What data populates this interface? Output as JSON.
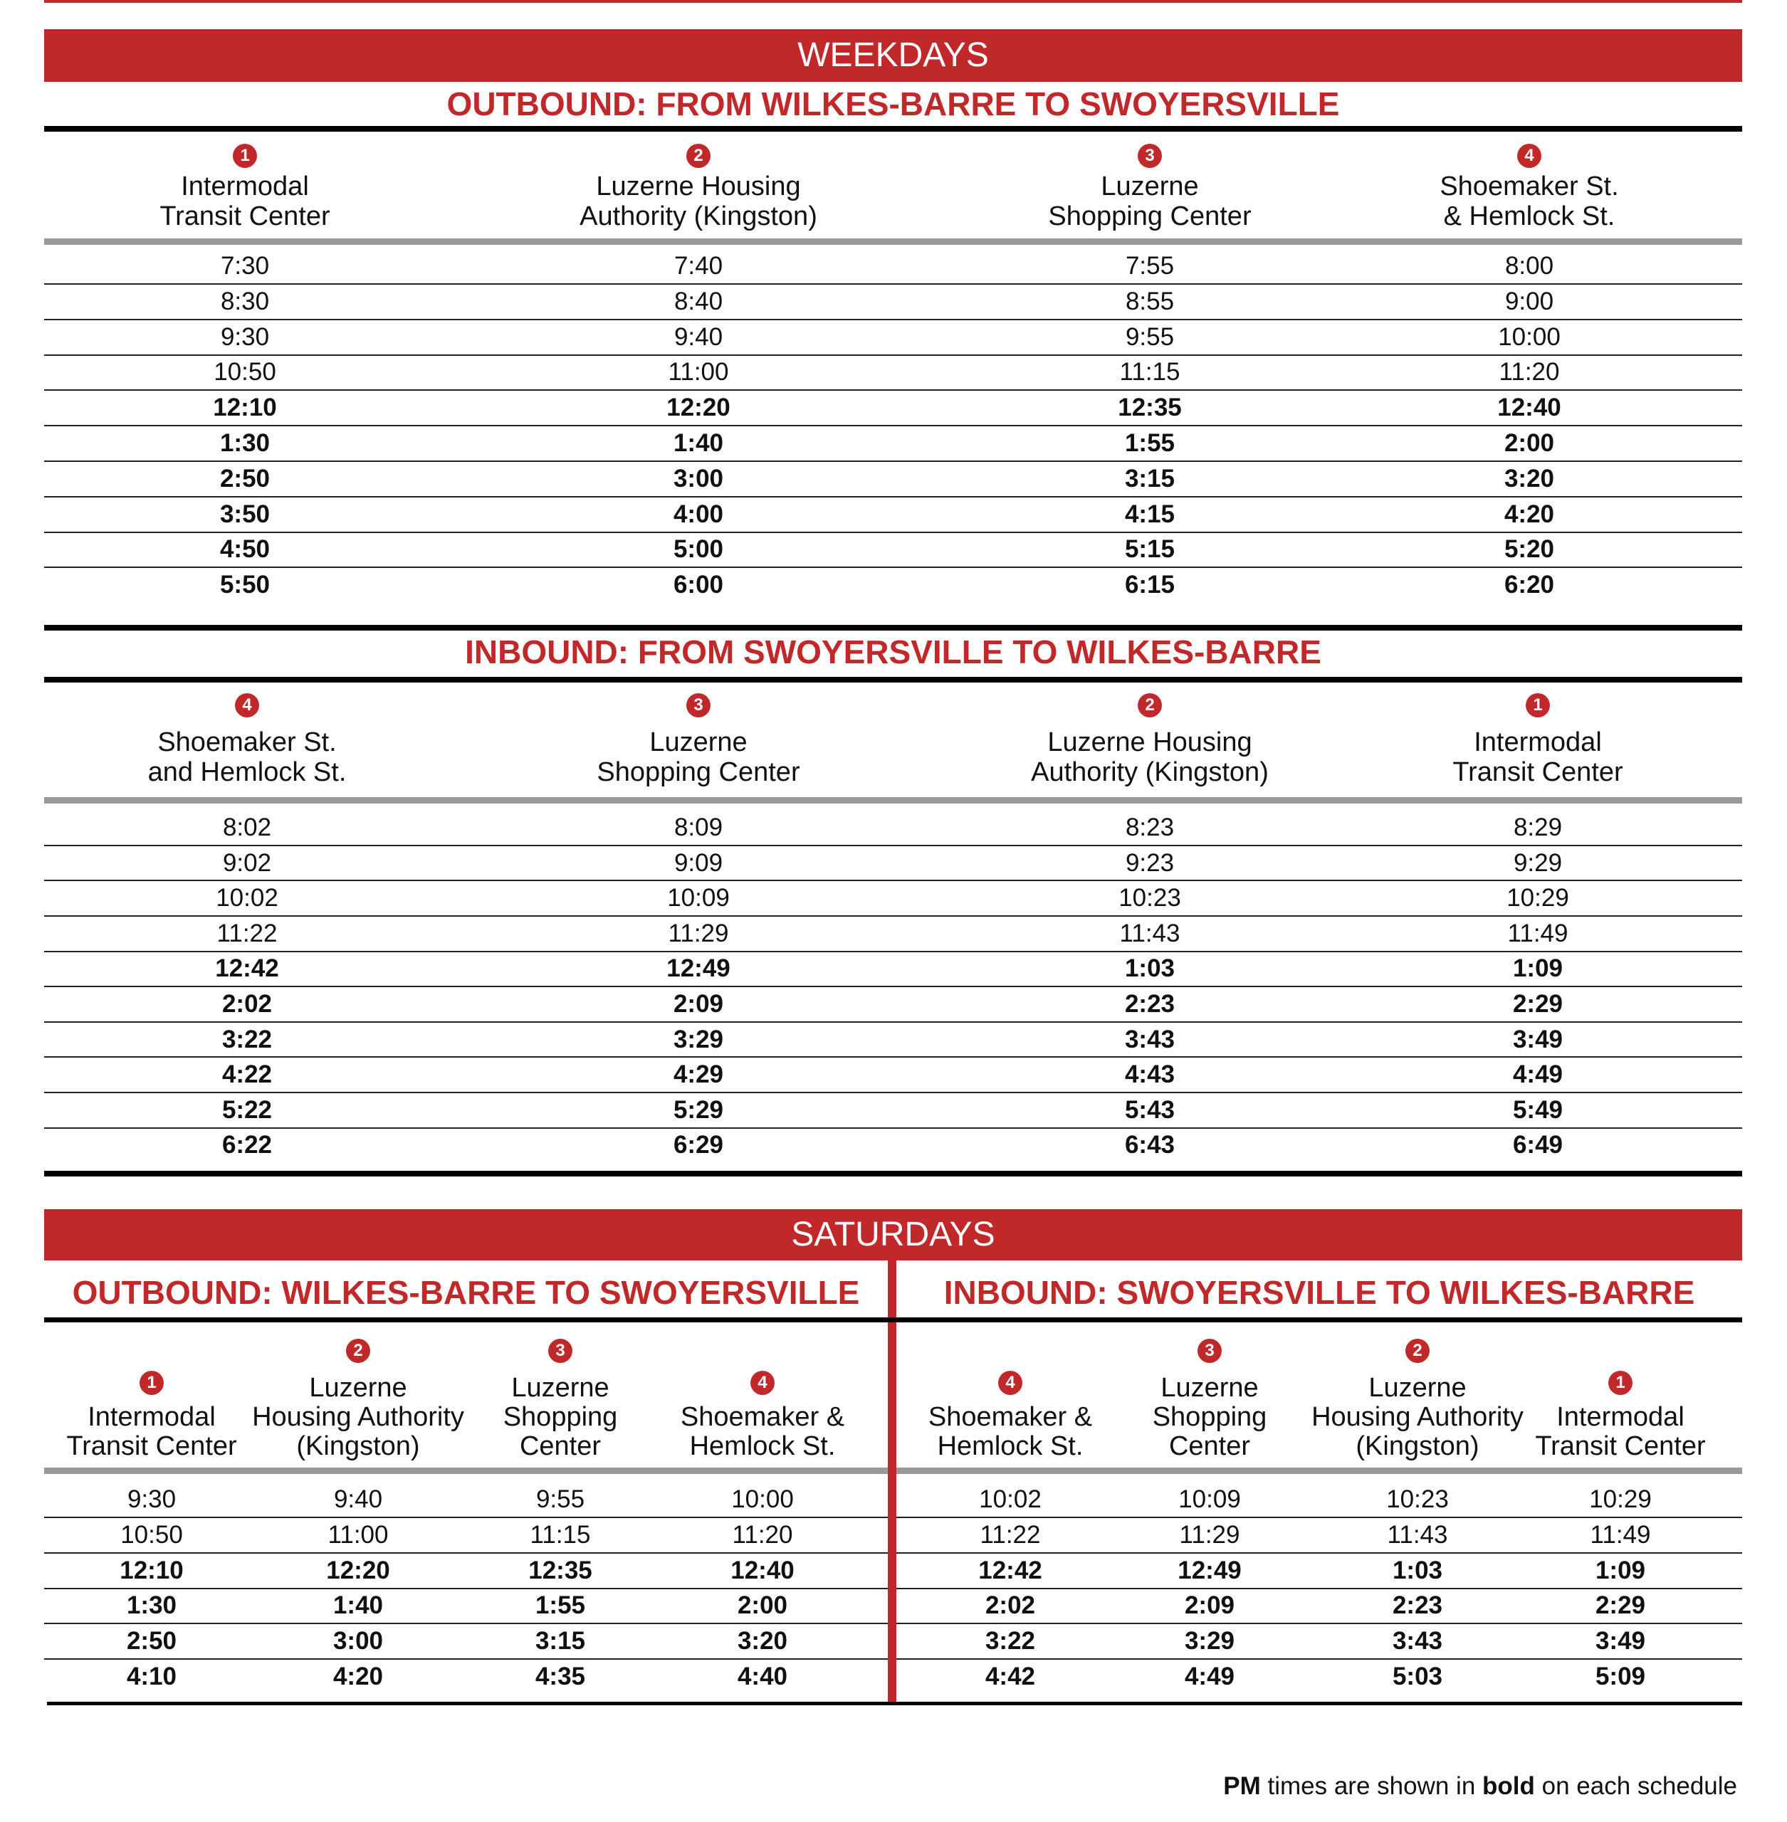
{
  "colors": {
    "accent": "#c0282a",
    "rule_gray": "#9a9898"
  },
  "footer": {
    "pm_label": "PM",
    "mid": " times are shown in ",
    "bold_label": "bold",
    "end": " on each schedule"
  },
  "weekdays": {
    "banner": "WEEKDAYS",
    "outbound": {
      "title": "OUTBOUND: FROM WILKES-BARRE TO SWOYERSVILLE",
      "stops": [
        {
          "num": "1",
          "lines": [
            "Intermodal",
            "Transit Center"
          ]
        },
        {
          "num": "2",
          "lines": [
            "Luzerne Housing",
            "Authority (Kingston)"
          ]
        },
        {
          "num": "3",
          "lines": [
            "Luzerne",
            "Shopping Center"
          ]
        },
        {
          "num": "4",
          "lines": [
            "Shoemaker St.",
            "& Hemlock St."
          ]
        }
      ],
      "rows": [
        {
          "times": [
            "7:30",
            "7:40",
            "7:55",
            "8:00"
          ],
          "pm": false
        },
        {
          "times": [
            "8:30",
            "8:40",
            "8:55",
            "9:00"
          ],
          "pm": false
        },
        {
          "times": [
            "9:30",
            "9:40",
            "9:55",
            "10:00"
          ],
          "pm": false
        },
        {
          "times": [
            "10:50",
            "11:00",
            "11:15",
            "11:20"
          ],
          "pm": false
        },
        {
          "times": [
            "12:10",
            "12:20",
            "12:35",
            "12:40"
          ],
          "pm": true
        },
        {
          "times": [
            "1:30",
            "1:40",
            "1:55",
            "2:00"
          ],
          "pm": true
        },
        {
          "times": [
            "2:50",
            "3:00",
            "3:15",
            "3:20"
          ],
          "pm": true
        },
        {
          "times": [
            "3:50",
            "4:00",
            "4:15",
            "4:20"
          ],
          "pm": true
        },
        {
          "times": [
            "4:50",
            "5:00",
            "5:15",
            "5:20"
          ],
          "pm": true
        },
        {
          "times": [
            "5:50",
            "6:00",
            "6:15",
            "6:20"
          ],
          "pm": true
        }
      ]
    },
    "inbound": {
      "title": "INBOUND: FROM SWOYERSVILLE TO WILKES-BARRE",
      "stops": [
        {
          "num": "4",
          "lines": [
            "Shoemaker St.",
            "and Hemlock St."
          ]
        },
        {
          "num": "3",
          "lines": [
            "Luzerne",
            "Shopping Center"
          ]
        },
        {
          "num": "2",
          "lines": [
            "Luzerne Housing",
            "Authority (Kingston)"
          ]
        },
        {
          "num": "1",
          "lines": [
            "Intermodal",
            "Transit Center"
          ]
        }
      ],
      "rows": [
        {
          "times": [
            "8:02",
            "8:09",
            "8:23",
            "8:29"
          ],
          "pm": false
        },
        {
          "times": [
            "9:02",
            "9:09",
            "9:23",
            "9:29"
          ],
          "pm": false
        },
        {
          "times": [
            "10:02",
            "10:09",
            "10:23",
            "10:29"
          ],
          "pm": false
        },
        {
          "times": [
            "11:22",
            "11:29",
            "11:43",
            "11:49"
          ],
          "pm": false
        },
        {
          "times": [
            "12:42",
            "12:49",
            "1:03",
            "1:09"
          ],
          "pm": true
        },
        {
          "times": [
            "2:02",
            "2:09",
            "2:23",
            "2:29"
          ],
          "pm": true
        },
        {
          "times": [
            "3:22",
            "3:29",
            "3:43",
            "3:49"
          ],
          "pm": true
        },
        {
          "times": [
            "4:22",
            "4:29",
            "4:43",
            "4:49"
          ],
          "pm": true
        },
        {
          "times": [
            "5:22",
            "5:29",
            "5:43",
            "5:49"
          ],
          "pm": true
        },
        {
          "times": [
            "6:22",
            "6:29",
            "6:43",
            "6:49"
          ],
          "pm": true
        }
      ]
    }
  },
  "saturdays": {
    "banner": "SATURDAYS",
    "outbound": {
      "title": "OUTBOUND: WILKES-BARRE TO SWOYERSVILLE",
      "stops": [
        {
          "num": "1",
          "lines": [
            "Intermodal",
            "Transit Center"
          ]
        },
        {
          "num": "2",
          "lines": [
            "Luzerne",
            "Housing Authority",
            "(Kingston)"
          ]
        },
        {
          "num": "3",
          "lines": [
            "Luzerne",
            "Shopping",
            "Center"
          ]
        },
        {
          "num": "4",
          "lines": [
            "Shoemaker &",
            "Hemlock St."
          ]
        }
      ],
      "rows": [
        {
          "times": [
            "9:30",
            "9:40",
            "9:55",
            "10:00"
          ],
          "pm": false
        },
        {
          "times": [
            "10:50",
            "11:00",
            "11:15",
            "11:20"
          ],
          "pm": false
        },
        {
          "times": [
            "12:10",
            "12:20",
            "12:35",
            "12:40"
          ],
          "pm": true
        },
        {
          "times": [
            "1:30",
            "1:40",
            "1:55",
            "2:00"
          ],
          "pm": true
        },
        {
          "times": [
            "2:50",
            "3:00",
            "3:15",
            "3:20"
          ],
          "pm": true
        },
        {
          "times": [
            "4:10",
            "4:20",
            "4:35",
            "4:40"
          ],
          "pm": true
        }
      ]
    },
    "inbound": {
      "title": "INBOUND: SWOYERSVILLE TO WILKES-BARRE",
      "stops": [
        {
          "num": "4",
          "lines": [
            "Shoemaker &",
            "Hemlock St."
          ]
        },
        {
          "num": "3",
          "lines": [
            "Luzerne",
            "Shopping",
            "Center"
          ]
        },
        {
          "num": "2",
          "lines": [
            "Luzerne",
            "Housing Authority",
            "(Kingston)"
          ]
        },
        {
          "num": "1",
          "lines": [
            "Intermodal",
            "Transit Center"
          ]
        }
      ],
      "rows": [
        {
          "times": [
            "10:02",
            "10:09",
            "10:23",
            "10:29"
          ],
          "pm": false
        },
        {
          "times": [
            "11:22",
            "11:29",
            "11:43",
            "11:49"
          ],
          "pm": false
        },
        {
          "times": [
            "12:42",
            "12:49",
            "1:03",
            "1:09"
          ],
          "pm": true
        },
        {
          "times": [
            "2:02",
            "2:09",
            "2:23",
            "2:29"
          ],
          "pm": true
        },
        {
          "times": [
            "3:22",
            "3:29",
            "3:43",
            "3:49"
          ],
          "pm": true
        },
        {
          "times": [
            "4:42",
            "4:49",
            "5:03",
            "5:09"
          ],
          "pm": true
        }
      ]
    }
  }
}
